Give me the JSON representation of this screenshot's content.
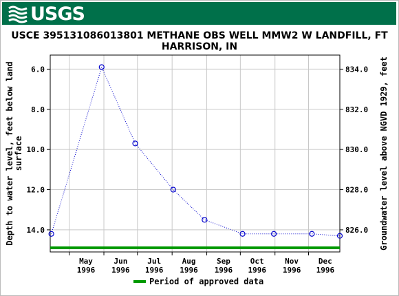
{
  "header": {
    "logo_text": "USGS",
    "logo_icon": "usgs-wave-icon",
    "color": "#00704a"
  },
  "chart_data": {
    "type": "line",
    "title": "USCE 395131086013801 METHANE OBS WELL MMW2 W LANDFILL, FT HARRISON, IN",
    "ylabel": "Depth to water level, feet below land surface",
    "ylabel_lines": [
      "Depth to water level, feet below land",
      "surface"
    ],
    "y2label": "Groundwater level above NGVD 1929, feet",
    "ylim": [
      5.3,
      15.1
    ],
    "y_ticks": [
      "6.0",
      "8.0",
      "10.0",
      "12.0",
      "14.0"
    ],
    "y2_ticks": [
      "834.0",
      "832.0",
      "830.0",
      "828.0",
      "826.0"
    ],
    "y2_tick_values": [
      834.0,
      832.0,
      830.0,
      828.0,
      826.0
    ],
    "y2_offset": 840.0,
    "xlim": [
      "1996-04-14",
      "1996-12-29"
    ],
    "x_month_starts": [
      "1996-05-01",
      "1996-06-01",
      "1996-07-01",
      "1996-08-01",
      "1996-09-01",
      "1996-10-01",
      "1996-11-01",
      "1996-12-01"
    ],
    "x_tick_labels": [
      {
        "month": "May",
        "year": "1996",
        "date": "1996-05-16"
      },
      {
        "month": "Jun",
        "year": "1996",
        "date": "1996-06-16"
      },
      {
        "month": "Jul",
        "year": "1996",
        "date": "1996-07-16"
      },
      {
        "month": "Aug",
        "year": "1996",
        "date": "1996-08-16"
      },
      {
        "month": "Sep",
        "year": "1996",
        "date": "1996-09-16"
      },
      {
        "month": "Oct",
        "year": "1996",
        "date": "1996-10-16"
      },
      {
        "month": "Nov",
        "year": "1996",
        "date": "1996-11-16"
      },
      {
        "month": "Dec",
        "year": "1996",
        "date": "1996-12-16"
      }
    ],
    "series": [
      {
        "points": [
          {
            "x": "1996-04-15",
            "y": 14.2
          },
          {
            "x": "1996-05-30",
            "y": 5.9
          },
          {
            "x": "1996-06-29",
            "y": 9.7
          },
          {
            "x": "1996-08-02",
            "y": 12.0
          },
          {
            "x": "1996-08-30",
            "y": 13.5
          },
          {
            "x": "1996-10-03",
            "y": 14.2
          },
          {
            "x": "1996-10-31",
            "y": 14.2
          },
          {
            "x": "1996-12-04",
            "y": 14.2
          },
          {
            "x": "1996-12-29",
            "y": 14.3
          }
        ],
        "color": "#0000cc"
      }
    ],
    "approved_period": {
      "start": "1996-04-14",
      "end": "1996-12-29",
      "color": "#009900"
    },
    "legend": [
      {
        "label": "Period of approved data",
        "color": "#009900"
      }
    ],
    "legend_position": "bottom-center",
    "grid": true
  }
}
